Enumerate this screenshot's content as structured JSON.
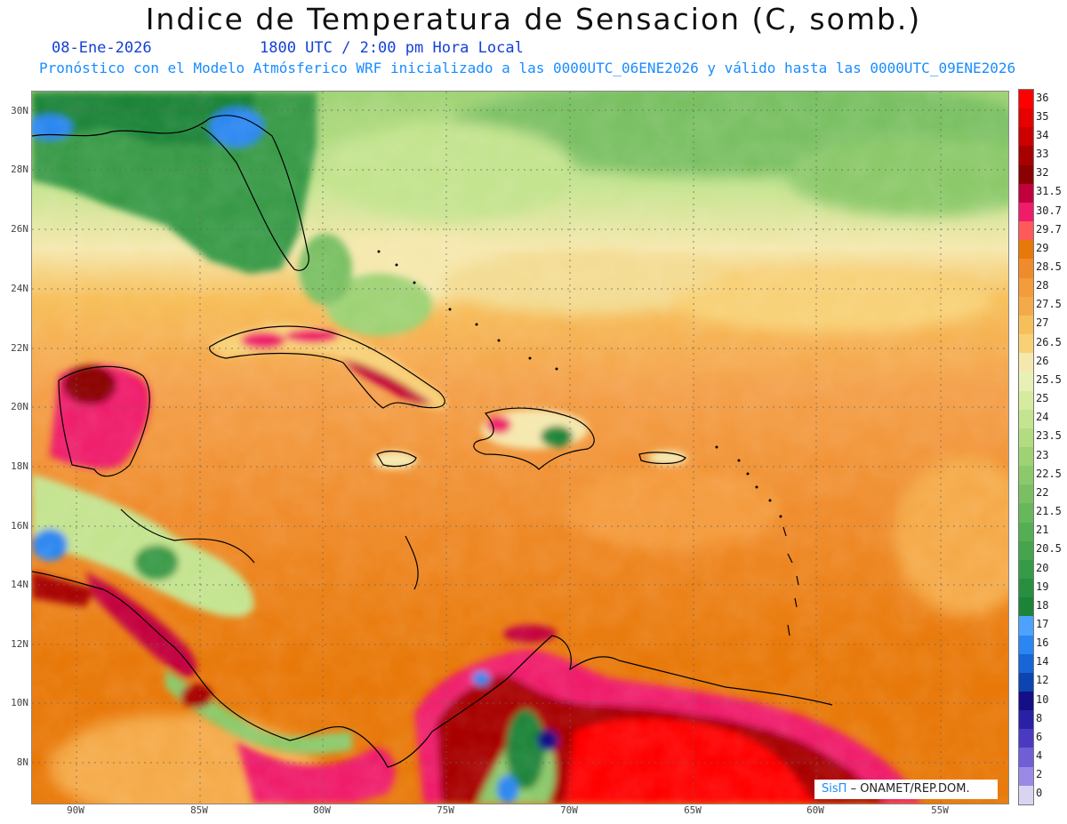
{
  "header": {
    "title": "Indice de Temperatura de Sensacion (C, somb.)",
    "date": "08-Ene-2026",
    "time": "1800 UTC / 2:00 pm Hora Local",
    "model_info": "Pronóstico con el Modelo Atmósferico WRF inicializado a las 0000UTC_06ENE2026 y válido hasta las  0000UTC_09ENE2026"
  },
  "lat_labels": [
    "30N",
    "28N",
    "26N",
    "24N",
    "22N",
    "20N",
    "18N",
    "16N",
    "14N",
    "12N",
    "10N",
    "8N"
  ],
  "lon_labels": [
    "90W",
    "85W",
    "80W",
    "75W",
    "70W",
    "65W",
    "60W",
    "55W"
  ],
  "colorbar": {
    "labels": [
      "36",
      "35",
      "34",
      "33",
      "32",
      "31.5",
      "30.7",
      "29.7",
      "29",
      "28.5",
      "28",
      "27.5",
      "27",
      "26.5",
      "26",
      "25.5",
      "25",
      "24",
      "23.5",
      "23",
      "22.5",
      "22",
      "21.5",
      "21",
      "20.5",
      "20",
      "19",
      "18",
      "17",
      "16",
      "14",
      "12",
      "10",
      "8",
      "6",
      "4",
      "2",
      "0"
    ],
    "colors": [
      "#ff0000",
      "#e60000",
      "#cc0000",
      "#a80000",
      "#8b0000",
      "#c2003d",
      "#ef1c6a",
      "#ff5a5a",
      "#e87808",
      "#ef8b2a",
      "#f49b3c",
      "#f5aa4a",
      "#f7bf5a",
      "#f8d177",
      "#f5e8ad",
      "#e8f0b6",
      "#d6eba0",
      "#c4e48f",
      "#b2dc81",
      "#9fd274",
      "#8cc96b",
      "#7ac063",
      "#67b75b",
      "#55ae54",
      "#46a44e",
      "#379a47",
      "#288f40",
      "#1b8439",
      "#4ea2ff",
      "#2a86f0",
      "#1666d8",
      "#0c44b0",
      "#140f86",
      "#2a20a8",
      "#4a3ac2",
      "#6f5ed6",
      "#9a8ae6",
      "#d8d4f2"
    ]
  },
  "credit": {
    "logo": "SisΠ",
    "text": "– ONAMET/REP.DOM."
  }
}
